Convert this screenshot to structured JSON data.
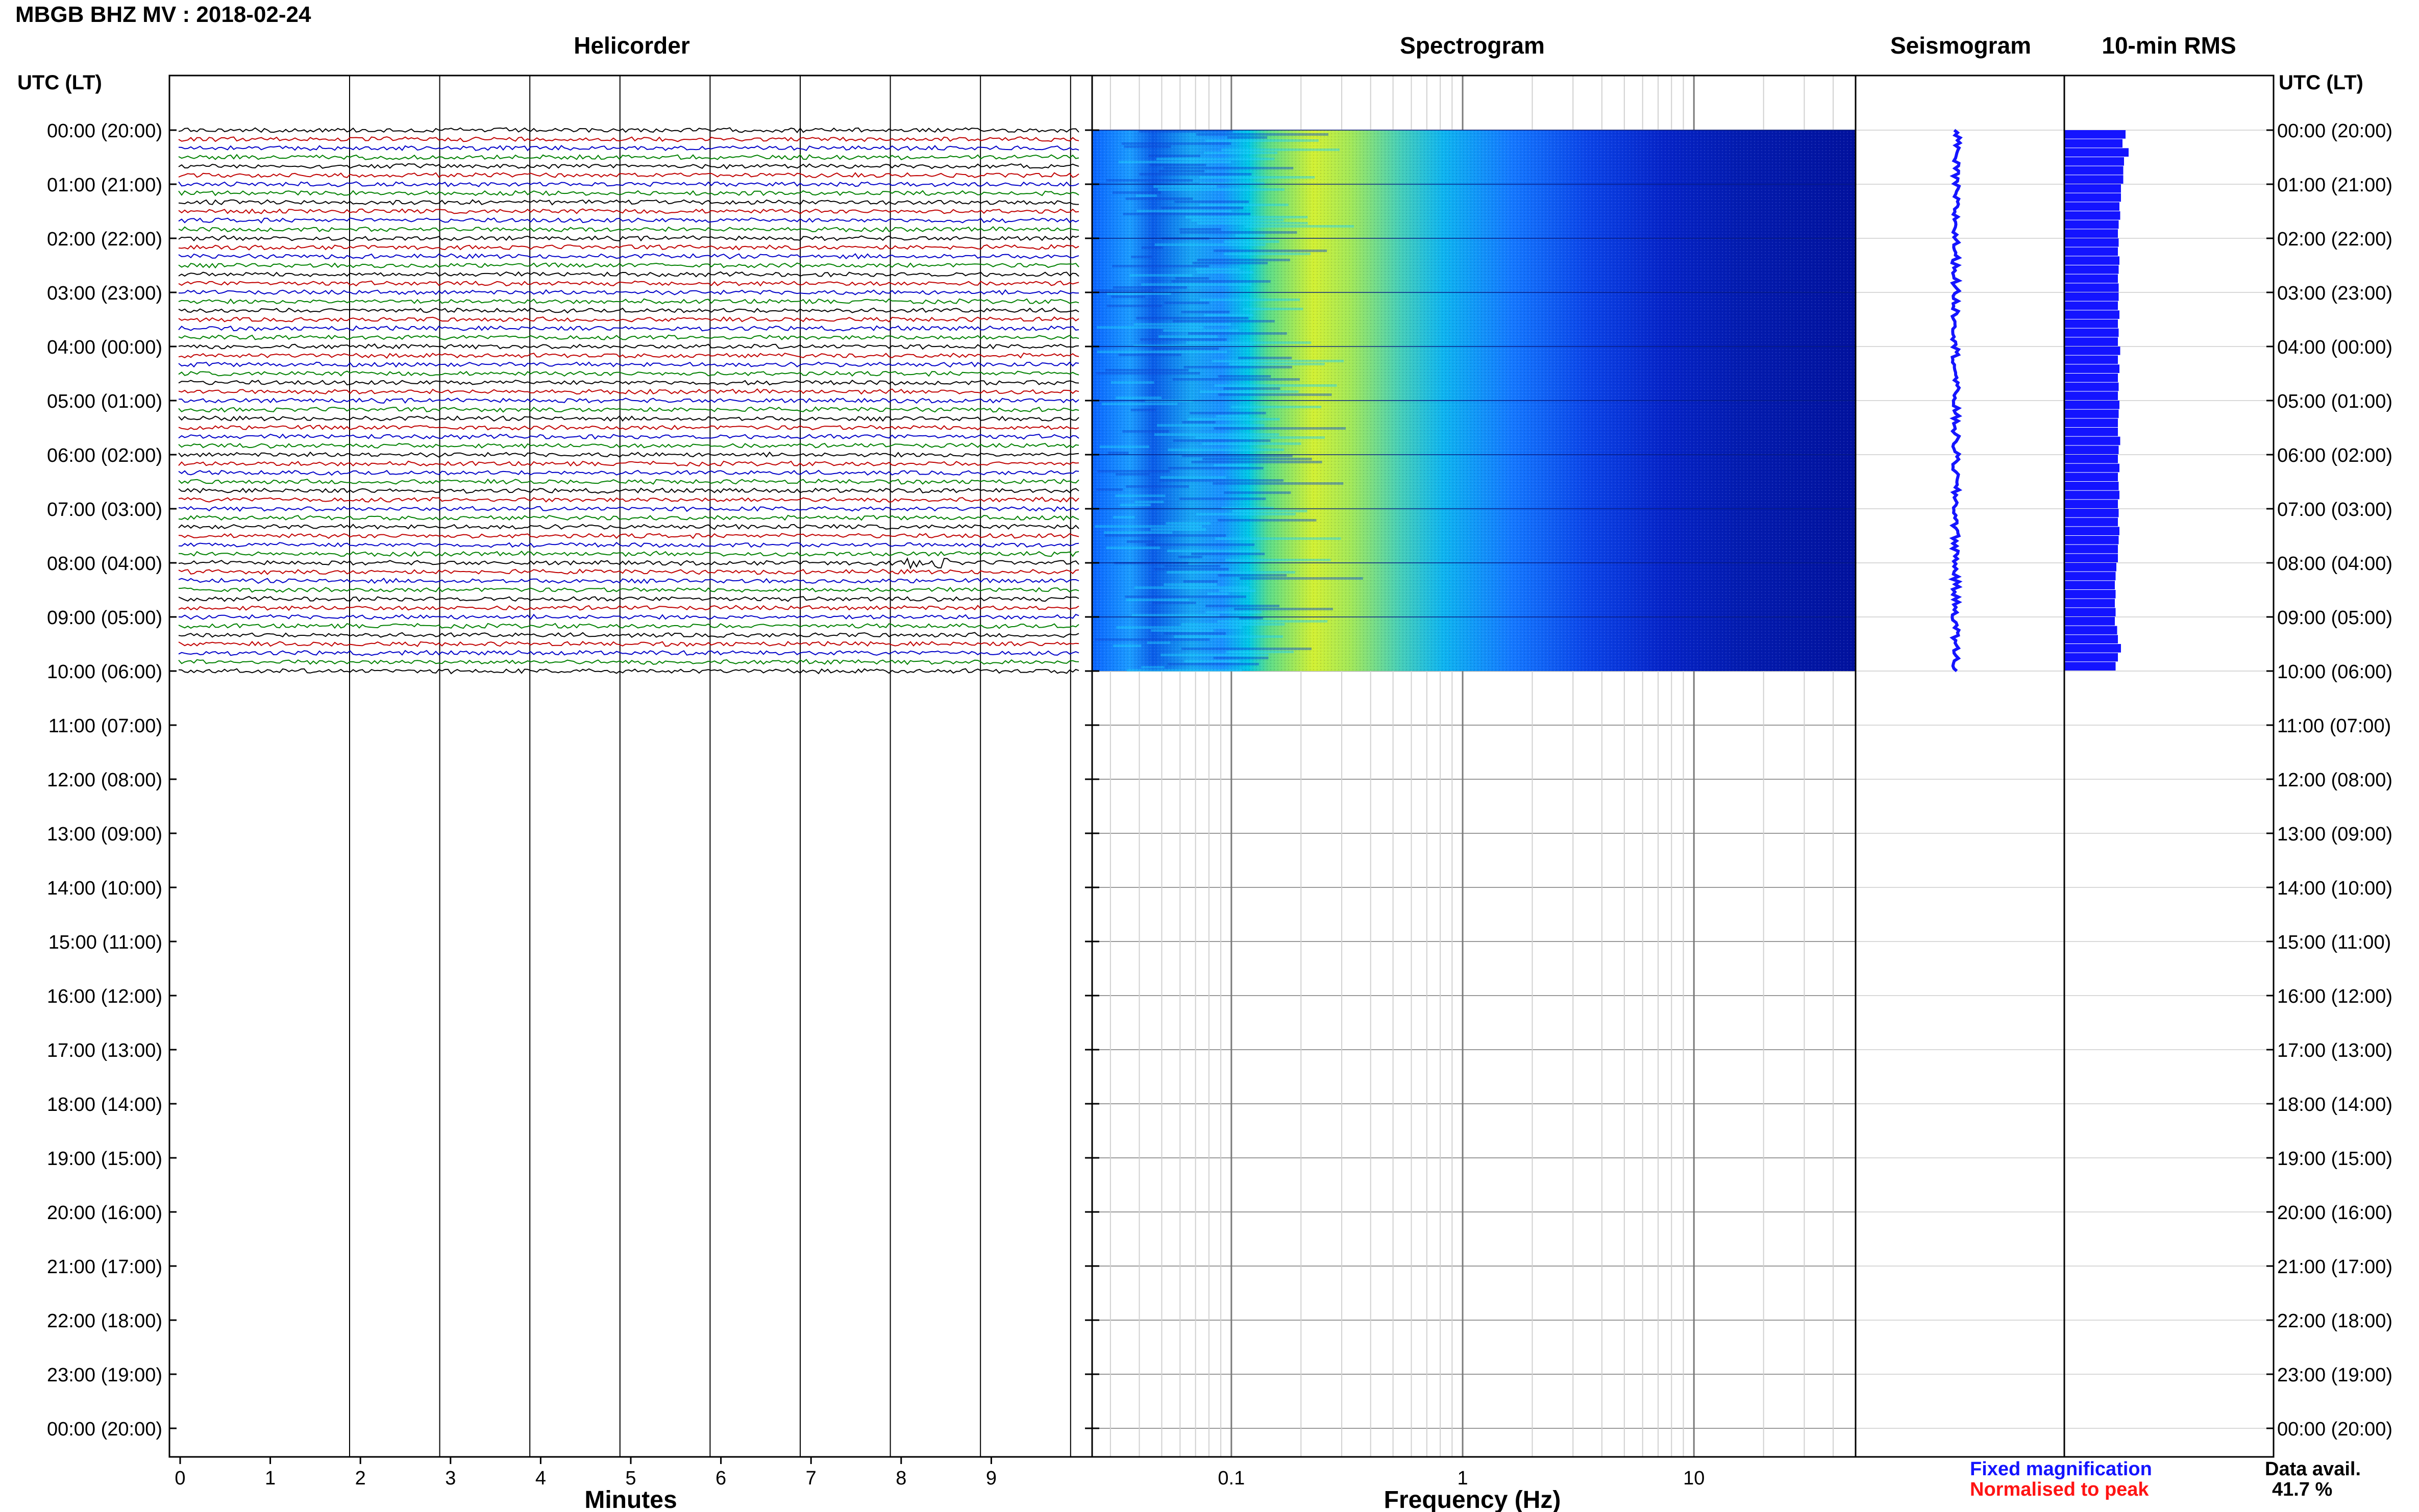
{
  "title": "MBGB BHZ MV : 2018-02-24",
  "panels": {
    "helicorder": "Helicorder",
    "spectrogram": "Spectrogram",
    "seismogram": "Seismogram",
    "rms": "10-min RMS"
  },
  "utc_header_left": "UTC (LT)",
  "utc_header_right": "UTC (LT)",
  "time_labels": [
    "00:00 (20:00)",
    "01:00 (21:00)",
    "02:00 (22:00)",
    "03:00 (23:00)",
    "04:00 (00:00)",
    "05:00 (01:00)",
    "06:00 (02:00)",
    "07:00 (03:00)",
    "08:00 (04:00)",
    "09:00 (05:00)",
    "10:00 (06:00)",
    "11:00 (07:00)",
    "12:00 (08:00)",
    "13:00 (09:00)",
    "14:00 (10:00)",
    "15:00 (11:00)",
    "16:00 (12:00)",
    "17:00 (13:00)",
    "18:00 (14:00)",
    "19:00 (15:00)",
    "20:00 (16:00)",
    "21:00 (17:00)",
    "22:00 (18:00)",
    "23:00 (19:00)",
    "00:00 (20:00)"
  ],
  "legend": {
    "fixed": "Fixed magnification",
    "normalised": "Normalised to peak",
    "fixed_color": "#1414ff",
    "normalised_color": "#ff1414"
  },
  "data_availability": {
    "label": "Data avail.",
    "value": "41.7 %"
  },
  "trace_colors": [
    "#000000",
    "#c00000",
    "#0000c8",
    "#008000"
  ],
  "chart_data": [
    {
      "type": "line",
      "name": "helicorder",
      "title": "Helicorder",
      "xlabel": "Minutes",
      "x_ticks": [
        "0",
        "1",
        "2",
        "3",
        "4",
        "5",
        "6",
        "7",
        "8",
        "9"
      ],
      "xlim": [
        0,
        10
      ],
      "ylim_hours": [
        0,
        24
      ],
      "trace_interval_minutes": 10,
      "data_end_hour": 10,
      "event": {
        "hour": 8,
        "minute": 8.3
      }
    },
    {
      "type": "heatmap",
      "name": "spectrogram",
      "title": "Spectrogram",
      "xlabel": "Frequency (Hz)",
      "x_scale": "log",
      "xlim": [
        0.025,
        50
      ],
      "x_ticks": [
        "0.1",
        "1",
        "10"
      ],
      "data_end_hour": 10,
      "colormap": "jet",
      "peak_frequency_band_hz": [
        0.15,
        0.35
      ]
    },
    {
      "type": "line",
      "name": "seismogram",
      "title": "Seismogram",
      "data_end_hour": 10
    },
    {
      "type": "bar",
      "name": "rms",
      "title": "10-min RMS",
      "interval_minutes": 10,
      "data_end_hour": 10,
      "values": [
        0.8,
        0.76,
        0.84,
        0.78,
        0.77,
        0.77,
        0.74,
        0.74,
        0.72,
        0.73,
        0.71,
        0.7,
        0.71,
        0.7,
        0.72,
        0.71,
        0.7,
        0.71,
        0.71,
        0.7,
        0.72,
        0.7,
        0.71,
        0.7,
        0.73,
        0.7,
        0.72,
        0.7,
        0.71,
        0.7,
        0.72,
        0.71,
        0.7,
        0.7,
        0.73,
        0.71,
        0.7,
        0.72,
        0.7,
        0.71,
        0.72,
        0.7,
        0.71,
        0.7,
        0.72,
        0.71,
        0.7,
        0.7,
        0.68,
        0.67,
        0.66,
        0.67,
        0.66,
        0.67,
        0.66,
        0.69,
        0.7,
        0.74,
        0.7,
        0.67
      ]
    }
  ]
}
